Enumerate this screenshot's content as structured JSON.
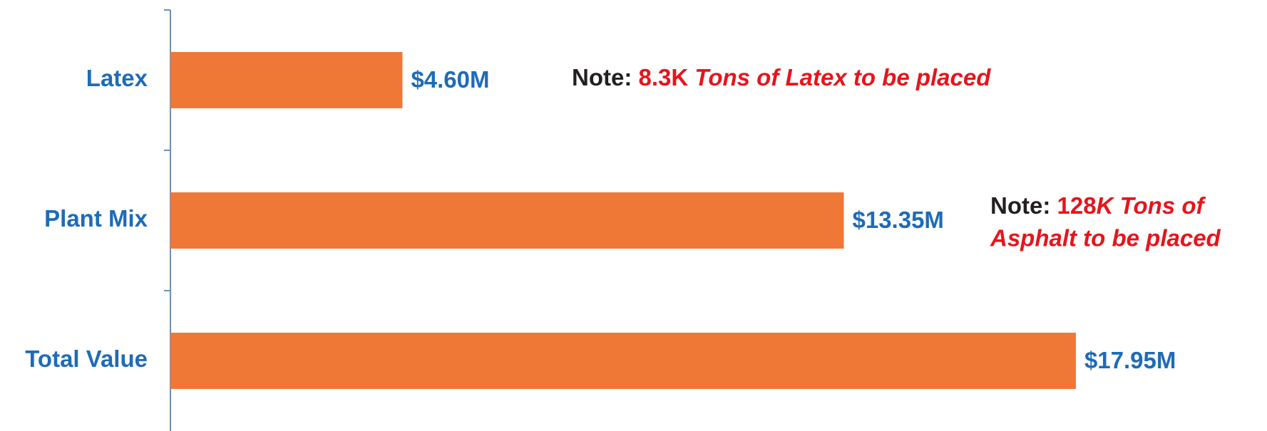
{
  "chart_data": {
    "type": "bar",
    "orientation": "horizontal",
    "categories": [
      "Latex",
      "Plant Mix",
      "Total Value"
    ],
    "values": [
      4.6,
      13.35,
      17.95
    ],
    "value_labels": [
      "$4.60M",
      "$13.35M",
      "$17.95M"
    ],
    "color": "#f07836",
    "xlim": [
      0,
      20
    ],
    "annotations": [
      {
        "parts": [
          "Note:",
          "8.3K",
          "Tons of Latex to be placed"
        ]
      },
      {
        "parts": [
          "Note:",
          "128",
          "K Tons of",
          "Asphalt to be placed"
        ]
      }
    ]
  }
}
